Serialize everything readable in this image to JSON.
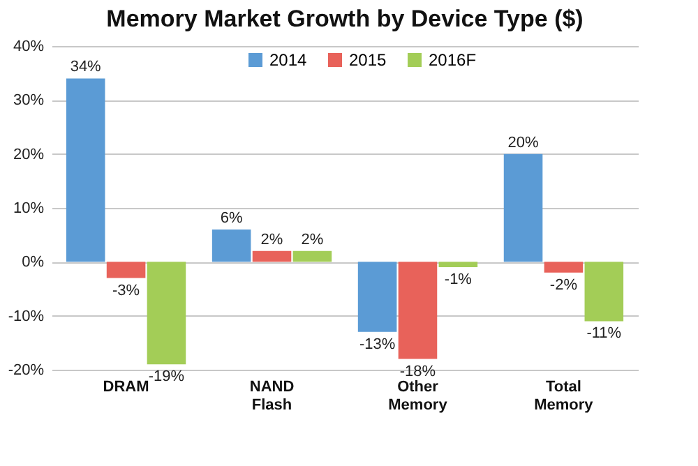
{
  "chart_data": {
    "type": "bar",
    "title": "Memory Market Growth by Device Type ($)",
    "categories": [
      "DRAM",
      "NAND Flash",
      "Other Memory",
      "Total Memory"
    ],
    "series": [
      {
        "name": "2014",
        "color": "#5b9bd5",
        "values": [
          34,
          6,
          -13,
          20
        ],
        "value_labels": [
          "34%",
          "6%",
          "-13%",
          "20%"
        ]
      },
      {
        "name": "2015",
        "color": "#e8625a",
        "values": [
          -3,
          2,
          -18,
          -2
        ],
        "value_labels": [
          "-3%",
          "2%",
          "-18%",
          "-2%"
        ]
      },
      {
        "name": "2016F",
        "color": "#a3cd57",
        "values": [
          -19,
          2,
          -1,
          -11
        ],
        "value_labels": [
          "-19%",
          "2%",
          "-1%",
          "-11%"
        ]
      }
    ],
    "ylim": [
      -20,
      40
    ],
    "yticks": [
      {
        "value": -20,
        "label": "-20%"
      },
      {
        "value": -10,
        "label": "-10%"
      },
      {
        "value": 0,
        "label": "0%"
      },
      {
        "value": 10,
        "label": "10%"
      },
      {
        "value": 20,
        "label": "20%"
      },
      {
        "value": 30,
        "label": "30%"
      },
      {
        "value": 40,
        "label": "40%"
      }
    ],
    "grid": "y",
    "legend": "top"
  }
}
